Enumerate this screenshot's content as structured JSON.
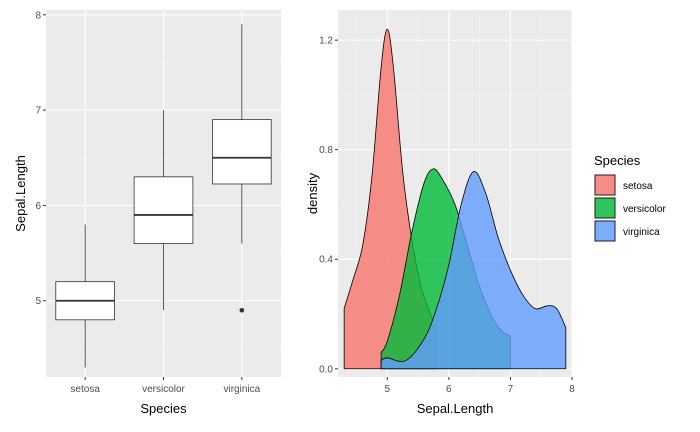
{
  "chart_data": [
    {
      "type": "box",
      "title": "",
      "xlabel": "Species",
      "ylabel": "Sepal.Length",
      "categories": [
        "setosa",
        "versicolor",
        "virginica"
      ],
      "ylim": [
        4.2,
        8.05
      ],
      "yticks": [
        "5",
        "6",
        "7",
        "8"
      ],
      "grid": true,
      "boxes": [
        {
          "category": "setosa",
          "whisker_low": 4.3,
          "q1": 4.8,
          "median": 5.0,
          "q3": 5.2,
          "whisker_high": 5.8,
          "outliers": []
        },
        {
          "category": "versicolor",
          "whisker_low": 4.9,
          "q1": 5.6,
          "median": 5.9,
          "q3": 6.3,
          "whisker_high": 7.0,
          "outliers": []
        },
        {
          "category": "virginica",
          "whisker_low": 5.6,
          "q1": 6.225,
          "median": 6.5,
          "q3": 6.9,
          "whisker_high": 7.9,
          "outliers": [
            4.9
          ]
        }
      ]
    },
    {
      "type": "area",
      "title": "",
      "xlabel": "Sepal.Length",
      "ylabel": "density",
      "xlim": [
        4.2,
        8.0
      ],
      "ylim": [
        -0.03,
        1.31
      ],
      "xticks": [
        "5",
        "6",
        "7",
        "8"
      ],
      "yticks": [
        "0.0",
        "0.4",
        "0.8",
        "1.2"
      ],
      "grid": true,
      "legend": {
        "title": "Species",
        "position": "right"
      },
      "series": [
        {
          "name": "setosa",
          "color": "#F8766D",
          "x": [
            4.3,
            4.45,
            4.6,
            4.75,
            4.9,
            5.0,
            5.1,
            5.25,
            5.4,
            5.55,
            5.7,
            5.8
          ],
          "y": [
            0.22,
            0.33,
            0.45,
            0.7,
            1.1,
            1.24,
            1.1,
            0.72,
            0.47,
            0.3,
            0.2,
            0.14
          ]
        },
        {
          "name": "versicolor",
          "color": "#00BA38",
          "x": [
            4.9,
            5.0,
            5.2,
            5.4,
            5.6,
            5.75,
            5.9,
            6.1,
            6.3,
            6.5,
            6.7,
            6.85,
            7.0
          ],
          "y": [
            0.06,
            0.1,
            0.27,
            0.5,
            0.68,
            0.73,
            0.69,
            0.6,
            0.45,
            0.3,
            0.19,
            0.14,
            0.12
          ]
        },
        {
          "name": "virginica",
          "color": "#619CFF",
          "x": [
            4.9,
            5.0,
            5.3,
            5.6,
            5.8,
            6.0,
            6.2,
            6.4,
            6.6,
            6.8,
            7.0,
            7.2,
            7.4,
            7.6,
            7.75,
            7.9
          ],
          "y": [
            0.03,
            0.04,
            0.03,
            0.11,
            0.22,
            0.38,
            0.6,
            0.72,
            0.64,
            0.48,
            0.36,
            0.27,
            0.22,
            0.23,
            0.22,
            0.15
          ]
        }
      ]
    }
  ]
}
